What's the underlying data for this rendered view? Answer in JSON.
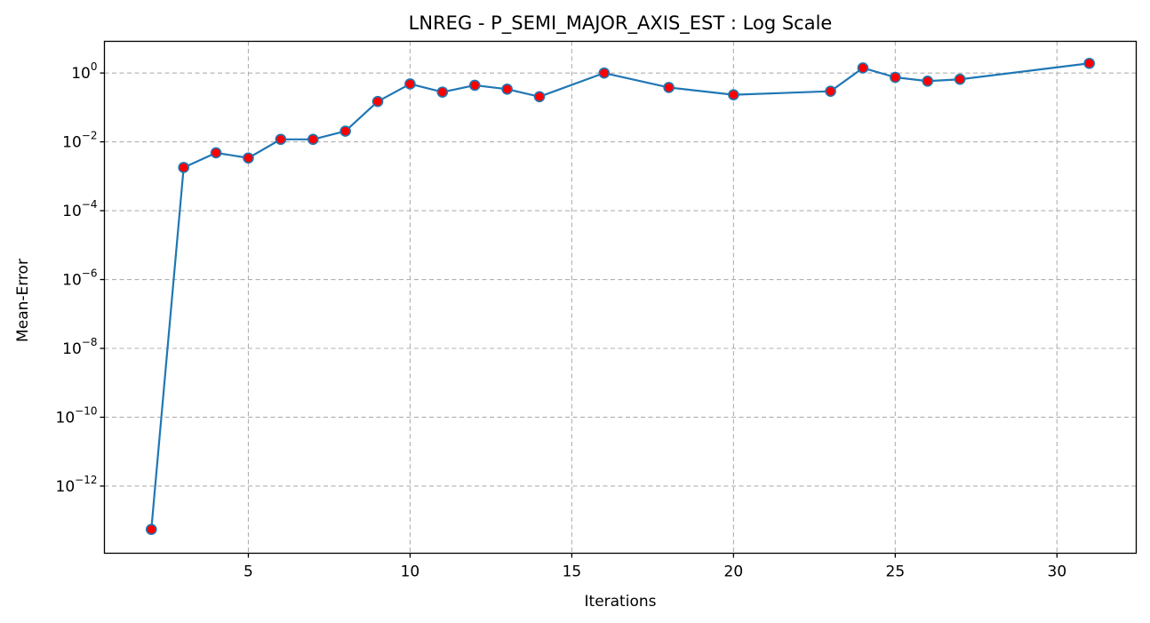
{
  "chart_data": {
    "type": "line",
    "title": "LNREG - P_SEMI_MAJOR_AXIS_EST : Log Scale",
    "xlabel": "Iterations",
    "ylabel": "Mean-Error",
    "yscale": "log",
    "xlim": [
      0.55,
      32.45
    ],
    "ylim": [
      1.12e-14,
      8.32
    ],
    "grid": true,
    "xticks": [
      5,
      10,
      15,
      20,
      25,
      30
    ],
    "yticks": [
      {
        "base": "10",
        "exp": "0",
        "value": 1
      },
      {
        "base": "10",
        "exp": "−2",
        "value": 0.01
      },
      {
        "base": "10",
        "exp": "−4",
        "value": 0.0001
      },
      {
        "base": "10",
        "exp": "−6",
        "value": 1e-06
      },
      {
        "base": "10",
        "exp": "−8",
        "value": 1e-08
      },
      {
        "base": "10",
        "exp": "−10",
        "value": 1e-10
      },
      {
        "base": "10",
        "exp": "−12",
        "value": 1e-12
      }
    ],
    "series": [
      {
        "line_color": "#1f77b4",
        "marker_color": "#ff0000",
        "x": [
          2,
          3,
          4,
          5,
          6,
          7,
          8,
          9,
          10,
          11,
          12,
          13,
          14,
          16,
          18,
          20,
          23,
          24,
          25,
          26,
          27,
          31
        ],
        "y": [
          5.5e-14,
          0.0018,
          0.0048,
          0.0034,
          0.0118,
          0.0118,
          0.0205,
          0.149,
          0.481,
          0.279,
          0.441,
          0.34,
          0.205,
          1.0,
          0.38,
          0.233,
          0.295,
          1.4,
          0.749,
          0.581,
          0.656,
          1.91
        ]
      }
    ]
  }
}
